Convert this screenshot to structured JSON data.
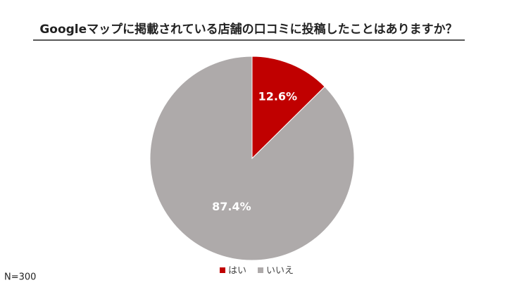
{
  "chart_data": {
    "type": "pie",
    "title": "Googleマップに掲載されている店舗の口コミに投稿したことはありますか？",
    "categories": [
      "はい",
      "いいえ"
    ],
    "values": [
      12.6,
      87.4
    ],
    "value_labels": [
      "12.6%",
      "87.4%"
    ],
    "colors": [
      "#c00000",
      "#aeaaaa"
    ],
    "legend": "bottom",
    "note": "N=300"
  }
}
